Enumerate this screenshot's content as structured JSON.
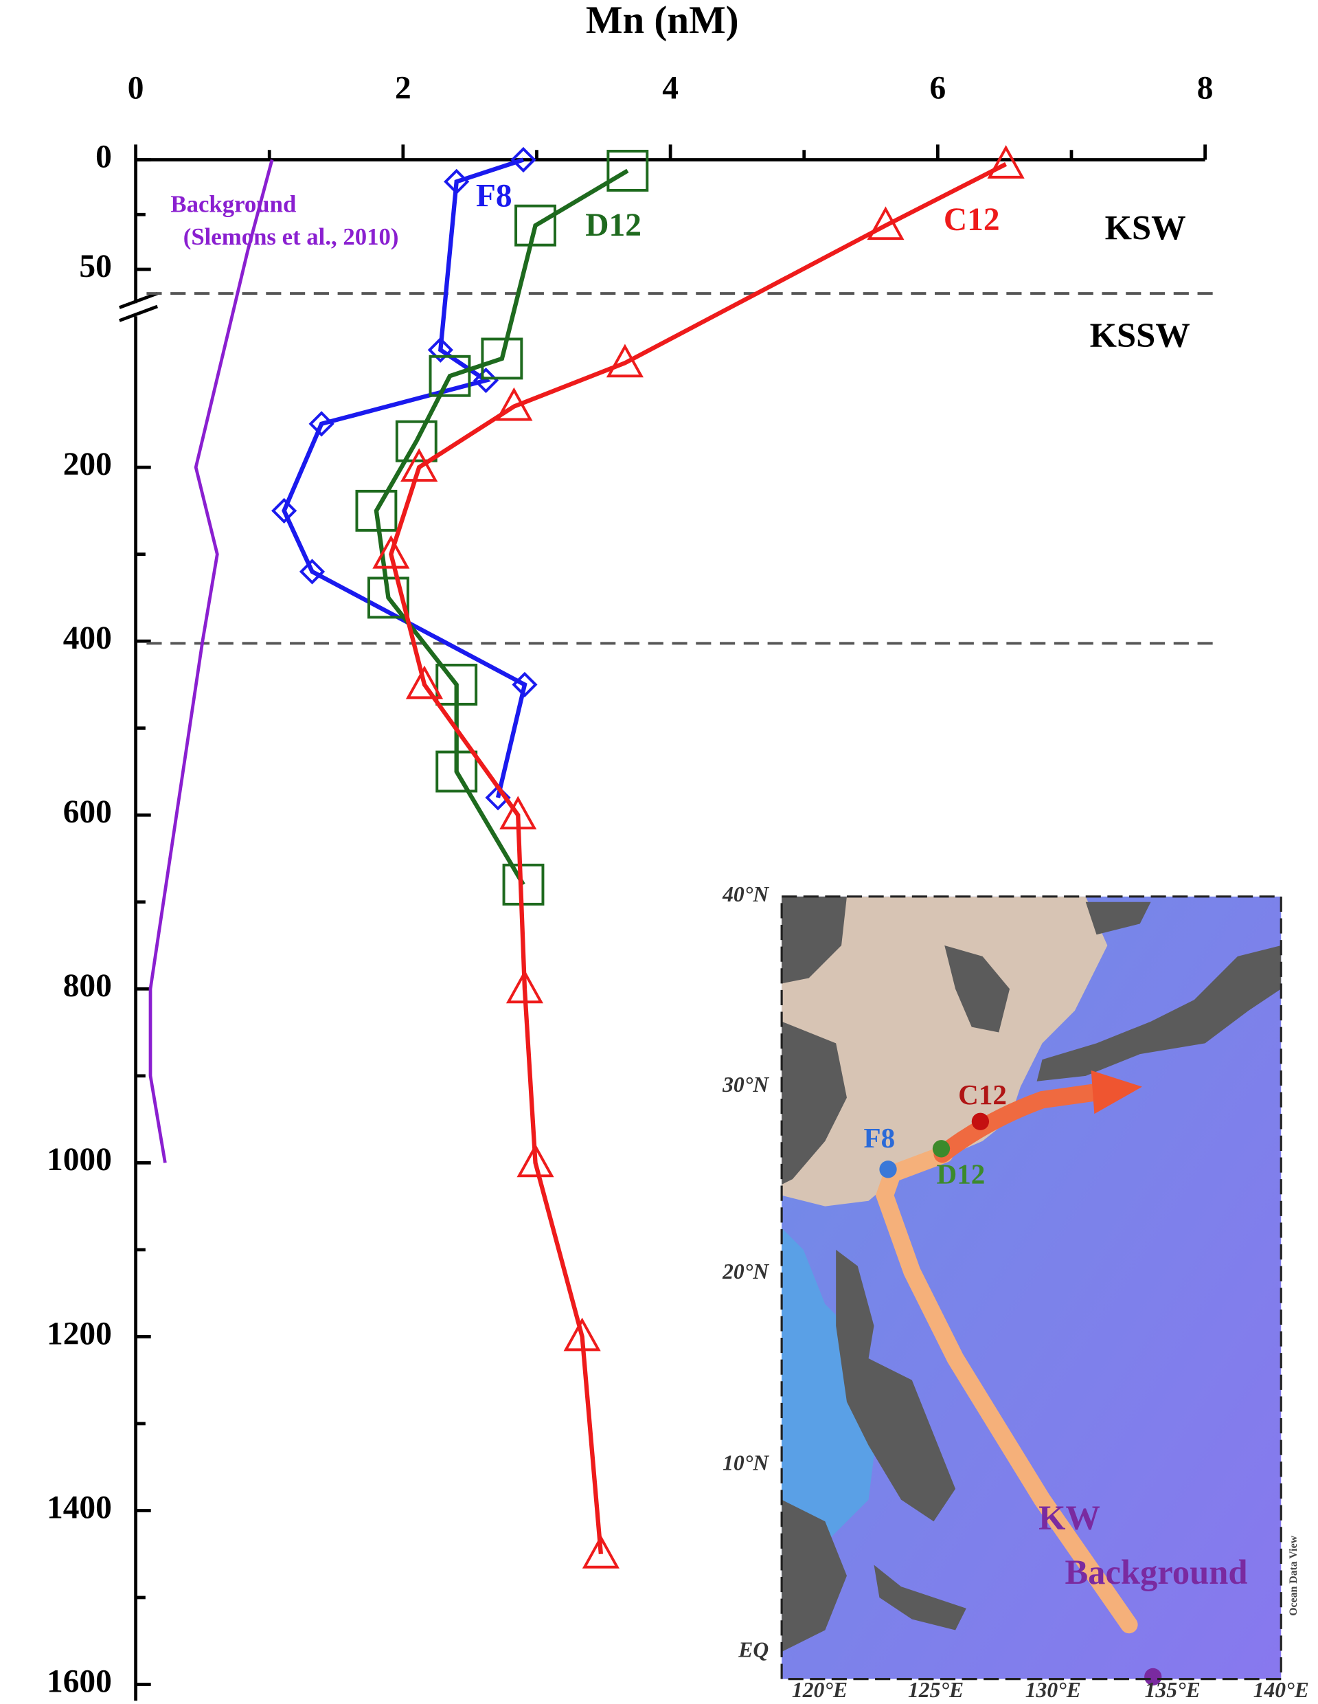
{
  "chart_data": {
    "type": "line",
    "title": "Mn (nM)",
    "xlim": [
      0,
      8
    ],
    "xticks": [
      0,
      2,
      4,
      6,
      8
    ],
    "y_segments": [
      {
        "ylim": [
          0,
          60
        ],
        "yticks": [
          0,
          50
        ]
      },
      {
        "ylim": [
          25,
          1600
        ],
        "yticks": [
          200,
          400,
          600,
          800,
          1000,
          1200,
          1400,
          1600
        ]
      }
    ],
    "reference_lines": [
      60,
      400
    ],
    "zone_labels": [
      "KSW",
      "KSSW"
    ],
    "background_label": [
      "Background",
      "(Slemons et al., 2010)"
    ],
    "series": [
      {
        "name": "Background",
        "color": "#8a1fd0",
        "marker": "none",
        "x": [
          1.02,
          0.84,
          0.45,
          0.61,
          0.5,
          0.11,
          0.11,
          0.22
        ],
        "y": [
          0,
          41,
          200,
          300,
          400,
          800,
          900,
          1000
        ]
      },
      {
        "name": "F8",
        "color": "#1a1aee",
        "marker": "diamond",
        "x": [
          2.9,
          2.4,
          2.28,
          2.62,
          1.39,
          1.11,
          1.32,
          2.91,
          2.71
        ],
        "y": [
          0,
          10,
          65,
          100,
          150,
          250,
          320,
          450,
          580
        ]
      },
      {
        "name": "D12",
        "color": "#1e6a1e",
        "marker": "square",
        "x": [
          3.68,
          2.99,
          2.74,
          2.35,
          2.1,
          1.8,
          1.89,
          2.4,
          2.4,
          2.9
        ],
        "y": [
          5,
          30,
          75,
          95,
          170,
          250,
          350,
          450,
          550,
          680
        ]
      },
      {
        "name": "C12",
        "color": "#ee1b1b",
        "marker": "triangle",
        "x": [
          6.51,
          5.61,
          3.66,
          2.83,
          2.12,
          1.91,
          2.16,
          2.86,
          2.91,
          2.99,
          3.34,
          3.48
        ],
        "y": [
          2,
          30,
          80,
          130,
          200,
          300,
          450,
          600,
          800,
          1000,
          1200,
          1450
        ]
      }
    ]
  },
  "inset": {
    "lat_labels": [
      "40°N",
      "30°N",
      "20°N",
      "10°N",
      "EQ"
    ],
    "lon_labels": [
      "120°E",
      "125°E",
      "130°E",
      "135°E",
      "140°E"
    ],
    "stations": [
      "C12",
      "F8",
      "D12"
    ],
    "kw_label": [
      "KW",
      "Background"
    ],
    "credit": "Ocean Data View"
  }
}
